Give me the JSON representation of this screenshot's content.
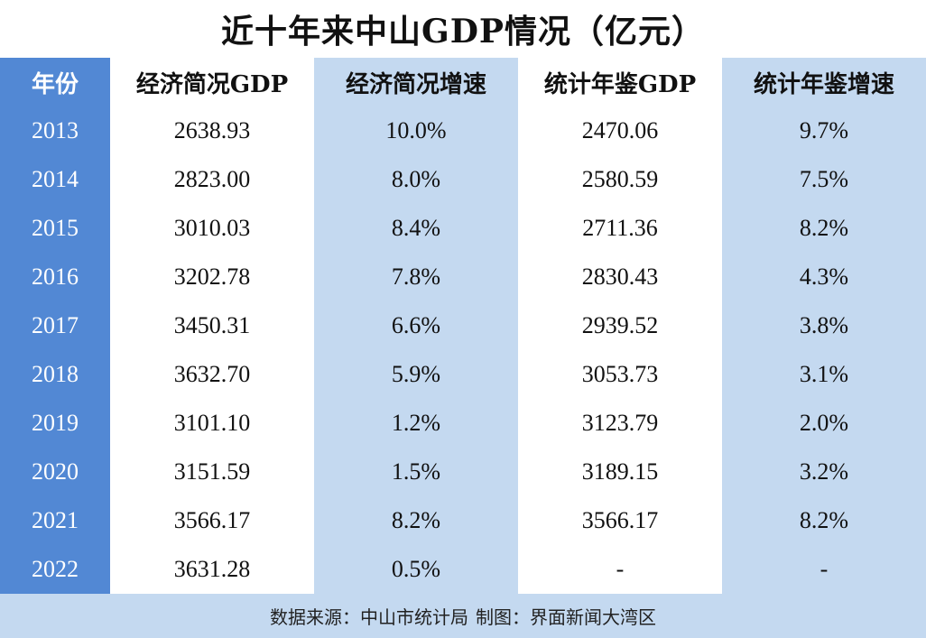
{
  "title": "近十年来中山GDP情况（亿元）",
  "colors": {
    "year_column": "#5288d4",
    "light_column": "#c4d9f0",
    "white_column": "#ffffff",
    "footer": "#c4d9f0"
  },
  "table": {
    "headers": [
      "年份",
      "经济简况GDP",
      "经济简况增速",
      "统计年鉴GDP",
      "统计年鉴增速"
    ],
    "years": [
      "2013",
      "2014",
      "2015",
      "2016",
      "2017",
      "2018",
      "2019",
      "2020",
      "2021",
      "2022"
    ],
    "economic_gdp": [
      "2638.93",
      "2823.00",
      "3010.03",
      "3202.78",
      "3450.31",
      "3632.70",
      "3101.10",
      "3151.59",
      "3566.17",
      "3631.28"
    ],
    "economic_growth": [
      "10.0%",
      "8.0%",
      "8.4%",
      "7.8%",
      "6.6%",
      "5.9%",
      "1.2%",
      "1.5%",
      "8.2%",
      "0.5%"
    ],
    "yearbook_gdp": [
      "2470.06",
      "2580.59",
      "2711.36",
      "2830.43",
      "2939.52",
      "3053.73",
      "3123.79",
      "3189.15",
      "3566.17",
      "-"
    ],
    "yearbook_growth": [
      "9.7%",
      "7.5%",
      "8.2%",
      "4.3%",
      "3.8%",
      "3.1%",
      "2.0%",
      "3.2%",
      "8.2%",
      "-"
    ]
  },
  "footer": {
    "source": "数据来源：中山市统计局",
    "credit": "制图：界面新闻大湾区"
  }
}
